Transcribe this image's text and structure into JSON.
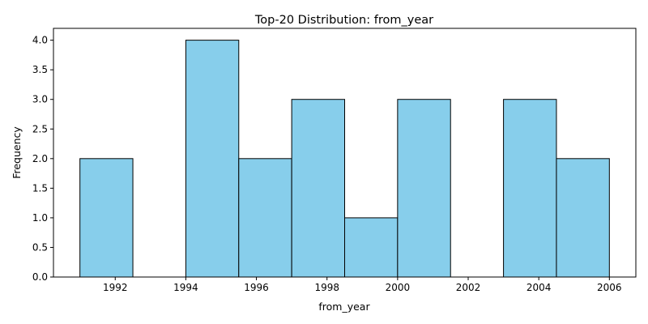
{
  "chart_data": {
    "type": "bar",
    "title": "Top-20 Distribution: from_year",
    "xlabel": "from_year",
    "ylabel": "Frequency",
    "bins": [
      {
        "start": 1991.0,
        "end": 1992.5,
        "count": 2
      },
      {
        "start": 1992.5,
        "end": 1994.0,
        "count": 0
      },
      {
        "start": 1994.0,
        "end": 1995.5,
        "count": 4
      },
      {
        "start": 1995.5,
        "end": 1997.0,
        "count": 2
      },
      {
        "start": 1997.0,
        "end": 1998.5,
        "count": 3
      },
      {
        "start": 1998.5,
        "end": 2000.0,
        "count": 1
      },
      {
        "start": 2000.0,
        "end": 2001.5,
        "count": 3
      },
      {
        "start": 2001.5,
        "end": 2003.0,
        "count": 0
      },
      {
        "start": 2003.0,
        "end": 2004.5,
        "count": 3
      },
      {
        "start": 2004.5,
        "end": 2006.0,
        "count": 2
      }
    ],
    "xlim": [
      1990.25,
      2006.75
    ],
    "ylim": [
      0,
      4.2
    ],
    "xticks": [
      "1992",
      "1994",
      "1996",
      "1998",
      "2000",
      "2002",
      "2004",
      "2006"
    ],
    "yticks": [
      "0.0",
      "0.5",
      "1.0",
      "1.5",
      "2.0",
      "2.5",
      "3.0",
      "3.5",
      "4.0"
    ],
    "bar_color": "#87CEEB",
    "edge_color": "#000000",
    "grid": false,
    "legend": "none"
  }
}
